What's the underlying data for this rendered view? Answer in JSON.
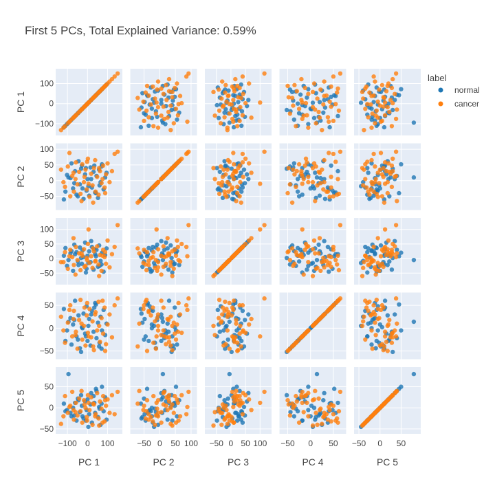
{
  "chart_data": {
    "type": "scatter",
    "title": "First 5 PCs, Total Explained Variance: 0.59%",
    "dimensions": [
      "PC 1",
      "PC 2",
      "PC 3",
      "PC 4",
      "PC 5"
    ],
    "axis_ranges": {
      "PC 1": [
        -145,
        160
      ],
      "PC 2": [
        -85,
        110
      ],
      "PC 3": [
        -80,
        130
      ],
      "PC 4": [
        -62,
        72
      ],
      "PC 5": [
        -55,
        90
      ]
    },
    "ticks": {
      "PC 1": [
        -100,
        0,
        100
      ],
      "PC 2": [
        -50,
        0,
        50,
        100
      ],
      "PC 3": [
        -50,
        0,
        50,
        100
      ],
      "PC 4": [
        -50,
        0,
        50
      ],
      "PC 5": [
        -50,
        0,
        50
      ]
    },
    "grid": true,
    "legend": {
      "title": "label",
      "placement": "top-right",
      "entries": [
        {
          "name": "normal",
          "color": "#1f77b4"
        },
        {
          "name": "cancer",
          "color": "#ff7f0e"
        }
      ]
    },
    "series": [
      {
        "name": "normal",
        "color": "#1f77b4",
        "points": [
          [
            -118,
            -60,
            10,
            42,
            10
          ],
          [
            -110,
            -35,
            36,
            -28,
            -8
          ],
          [
            -95,
            10,
            -5,
            14,
            80
          ],
          [
            -80,
            55,
            26,
            -36,
            -20
          ],
          [
            -72,
            -25,
            -42,
            8,
            0
          ],
          [
            -62,
            30,
            15,
            60,
            12
          ],
          [
            -55,
            -45,
            22,
            -18,
            -30
          ],
          [
            -45,
            62,
            -22,
            28,
            18
          ],
          [
            -38,
            -12,
            38,
            -44,
            -10
          ],
          [
            -28,
            48,
            -18,
            2,
            5
          ],
          [
            -20,
            -58,
            5,
            32,
            -25
          ],
          [
            -12,
            20,
            55,
            -12,
            15
          ],
          [
            -5,
            -32,
            -35,
            48,
            -5
          ],
          [
            0,
            5,
            10,
            -28,
            20
          ],
          [
            8,
            -48,
            25,
            20,
            -15
          ],
          [
            15,
            42,
            -12,
            -38,
            8
          ],
          [
            22,
            -22,
            40,
            38,
            -35
          ],
          [
            30,
            28,
            -38,
            -8,
            28
          ],
          [
            38,
            -38,
            15,
            55,
            -12
          ],
          [
            45,
            15,
            30,
            -22,
            40
          ],
          [
            52,
            -55,
            -28,
            12,
            -22
          ],
          [
            58,
            35,
            45,
            -40,
            2
          ],
          [
            65,
            -5,
            -8,
            25,
            -40
          ],
          [
            72,
            52,
            20,
            -5,
            50
          ],
          [
            80,
            -28,
            -45,
            40,
            -8
          ],
          [
            88,
            10,
            12,
            -15,
            25
          ],
          [
            -102,
            18,
            -25,
            -5,
            -5
          ],
          [
            -66,
            -8,
            48,
            18,
            -18
          ],
          [
            -32,
            38,
            2,
            -52,
            30
          ],
          [
            4,
            -18,
            -15,
            5,
            -45
          ],
          [
            34,
            48,
            32,
            45,
            12
          ],
          [
            60,
            -15,
            -25,
            -32,
            -2
          ],
          [
            95,
            25,
            35,
            10,
            -28
          ],
          [
            -48,
            -50,
            -10,
            -25,
            22
          ],
          [
            18,
            5,
            60,
            30,
            35
          ],
          [
            -8,
            40,
            -48,
            -18,
            -30
          ],
          [
            42,
            -40,
            8,
            52,
            45
          ],
          [
            -85,
            8,
            18,
            22,
            -12
          ],
          [
            70,
            45,
            -20,
            -45,
            10
          ],
          [
            -25,
            -25,
            28,
            0,
            -20
          ]
        ]
      },
      {
        "name": "cancer",
        "color": "#ff7f0e",
        "points": [
          [
            -132,
            35,
            -12,
            25,
            -38
          ],
          [
            -112,
            -20,
            22,
            -32,
            28
          ],
          [
            -98,
            45,
            -35,
            12,
            -12
          ],
          [
            -86,
            -50,
            30,
            50,
            5
          ],
          [
            -76,
            15,
            5,
            -18,
            38
          ],
          [
            -68,
            -35,
            -22,
            38,
            -28
          ],
          [
            -58,
            58,
            40,
            -8,
            12
          ],
          [
            -50,
            -12,
            -5,
            -45,
            -18
          ],
          [
            -42,
            28,
            18,
            18,
            22
          ],
          [
            -35,
            -42,
            -40,
            62,
            -8
          ],
          [
            -26,
            52,
            10,
            -25,
            -35
          ],
          [
            -18,
            -5,
            32,
            5,
            18
          ],
          [
            -10,
            35,
            -25,
            -38,
            0
          ],
          [
            -4,
            -28,
            2,
            28,
            -22
          ],
          [
            2,
            70,
            50,
            -10,
            30
          ],
          [
            10,
            -52,
            -15,
            42,
            -5
          ],
          [
            18,
            22,
            8,
            -20,
            25
          ],
          [
            25,
            -15,
            -32,
            15,
            -40
          ],
          [
            32,
            40,
            25,
            -48,
            8
          ],
          [
            40,
            -35,
            -8,
            35,
            -15
          ],
          [
            48,
            12,
            42,
            -5,
            35
          ],
          [
            55,
            -45,
            -20,
            58,
            -25
          ],
          [
            62,
            30,
            12,
            -30,
            15
          ],
          [
            70,
            -8,
            -42,
            22,
            -2
          ],
          [
            78,
            48,
            30,
            -12,
            28
          ],
          [
            85,
            -22,
            5,
            45,
            -32
          ],
          [
            92,
            20,
            -18,
            -35,
            5
          ],
          [
            100,
            55,
            62,
            8,
            20
          ],
          [
            110,
            -5,
            -30,
            30,
            -12
          ],
          [
            122,
            30,
            15,
            -20,
            30
          ],
          [
            135,
            85,
            40,
            50,
            -15
          ],
          [
            150,
            92,
            115,
            65,
            38
          ],
          [
            -120,
            -5,
            -12,
            -5,
            -20
          ],
          [
            -90,
            88,
            8,
            40,
            2
          ],
          [
            -60,
            5,
            -55,
            -15,
            -10
          ],
          [
            -30,
            -65,
            18,
            10,
            40
          ],
          [
            -2,
            60,
            -5,
            55,
            -30
          ],
          [
            28,
            -70,
            35,
            -40,
            10
          ],
          [
            58,
            40,
            -60,
            5,
            -42
          ],
          [
            88,
            -40,
            22,
            -50,
            18
          ],
          [
            -70,
            25,
            70,
            20,
            -5
          ],
          [
            5,
            -10,
            100,
            -18,
            12
          ],
          [
            38,
            65,
            -10,
            30,
            -20
          ],
          [
            -15,
            12,
            -28,
            45,
            8
          ],
          [
            75,
            5,
            10,
            60,
            -35
          ]
        ]
      }
    ]
  }
}
